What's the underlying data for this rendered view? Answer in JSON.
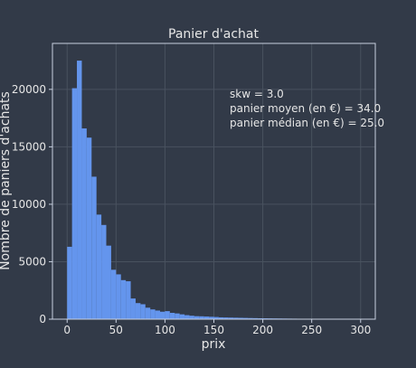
{
  "chart_data": {
    "type": "bar",
    "title": "Panier d'achat",
    "xlabel": "prix",
    "ylabel": "Nombre de paniers d'achats",
    "xlim": [
      -15,
      315
    ],
    "ylim": [
      0,
      24000
    ],
    "xticks": [
      0,
      50,
      100,
      150,
      200,
      250,
      300
    ],
    "yticks": [
      0,
      5000,
      10000,
      15000,
      20000
    ],
    "grid": true,
    "bin_width": 5,
    "bin_start": 0,
    "values": [
      6300,
      20100,
      22500,
      16600,
      15800,
      12400,
      9100,
      8200,
      6400,
      4300,
      3900,
      3400,
      3300,
      1800,
      1400,
      1300,
      1000,
      850,
      750,
      650,
      700,
      550,
      500,
      420,
      350,
      300,
      260,
      250,
      230,
      210,
      190,
      160,
      150,
      140,
      130,
      120,
      110,
      100,
      90,
      80,
      75,
      70,
      65,
      60,
      55,
      50,
      45,
      40,
      38,
      35,
      33,
      30,
      28,
      26,
      24,
      22,
      20,
      18,
      16,
      15
    ],
    "bar_color": "#6495ed",
    "annotations": [
      "skw = 3.0",
      "panier moyen (en €) = 34.0",
      "panier médian (en €) = 25.0"
    ]
  }
}
